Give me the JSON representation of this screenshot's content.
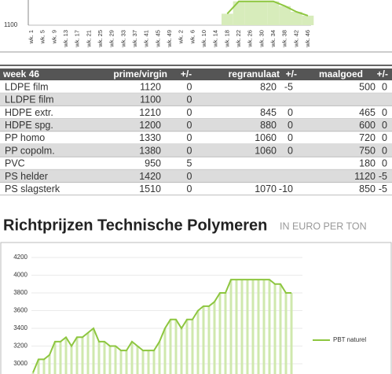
{
  "chart_data": [
    {
      "type": "bar-line",
      "categories": [
        "wk. 1",
        "wk. 5",
        "wk. 9",
        "wk. 13",
        "wk. 17",
        "wk. 21",
        "wk. 25",
        "wk. 29",
        "wk. 33",
        "wk. 37",
        "wk. 41",
        "wk. 45",
        "wk. 49",
        "wk. 2",
        "wk. 6",
        "wk. 10",
        "wk. 14",
        "wk. 18",
        "wk. 22",
        "wk. 26",
        "wk. 30",
        "wk. 34",
        "wk. 38",
        "wk. 42",
        "wk. 46"
      ],
      "values": [
        null,
        null,
        null,
        null,
        null,
        null,
        null,
        null,
        null,
        null,
        null,
        null,
        null,
        null,
        null,
        null,
        null,
        1124,
        1150,
        1150,
        1150,
        1150,
        1140,
        1128,
        1120
      ],
      "color": "#8dc63f",
      "ylim": [
        1100,
        1400
      ],
      "yticks": [
        1100
      ]
    },
    {
      "type": "bar-line",
      "title": "Richtprijzen Technische Polymeren",
      "subtitle": "IN EURO PER TON",
      "categories": [
        null,
        null,
        null,
        null,
        null,
        null,
        null,
        null,
        null,
        null,
        null,
        null,
        null,
        null,
        null,
        null,
        null,
        null,
        null,
        null,
        null,
        null,
        null,
        null,
        null,
        null,
        null,
        null,
        null,
        null,
        null,
        null,
        null,
        null,
        null,
        null,
        null,
        null,
        null,
        null,
        null,
        null,
        null,
        null,
        null,
        null,
        null,
        null
      ],
      "series": [
        {
          "name": "PBT naturel",
          "color": "#8dc63f",
          "values": [
            2900,
            3050,
            3050,
            3100,
            3250,
            3250,
            3300,
            3200,
            3300,
            3300,
            3350,
            3400,
            3250,
            3250,
            3200,
            3200,
            3150,
            3150,
            3250,
            3200,
            3150,
            3150,
            3150,
            3250,
            3400,
            3500,
            3500,
            3400,
            3500,
            3500,
            3600,
            3650,
            3650,
            3700,
            3800,
            3800,
            3950,
            3950,
            3950,
            3950,
            3950,
            3950,
            3950,
            3950,
            3900,
            3900,
            3800,
            3800
          ]
        }
      ],
      "ylim": [
        3000,
        4200
      ],
      "yticks": [
        3000,
        3200,
        3400,
        3600,
        3800,
        4000,
        4200
      ],
      "grid": true
    }
  ],
  "table": {
    "header": [
      "week 46",
      "prime/virgin",
      "+/-",
      "regranulaat",
      "+/-",
      "maalgoed",
      "+/-"
    ],
    "rows": [
      [
        "LDPE film",
        1120,
        0,
        820,
        -5,
        500,
        0
      ],
      [
        "LLDPE film",
        1100,
        0,
        null,
        null,
        null,
        null
      ],
      [
        "HDPE extr.",
        1210,
        0,
        845,
        0,
        465,
        0
      ],
      [
        "HDPE spg.",
        1200,
        0,
        880,
        0,
        600,
        0
      ],
      [
        "PP homo",
        1330,
        0,
        1060,
        0,
        720,
        0
      ],
      [
        "PP copolm.",
        1380,
        0,
        1060,
        0,
        750,
        0
      ],
      [
        "PVC",
        950,
        5,
        null,
        null,
        180,
        0
      ],
      [
        "PS helder",
        1420,
        0,
        null,
        null,
        1120,
        -5
      ],
      [
        "PS slagsterk",
        1510,
        0,
        1070,
        -10,
        850,
        -5
      ]
    ]
  }
}
